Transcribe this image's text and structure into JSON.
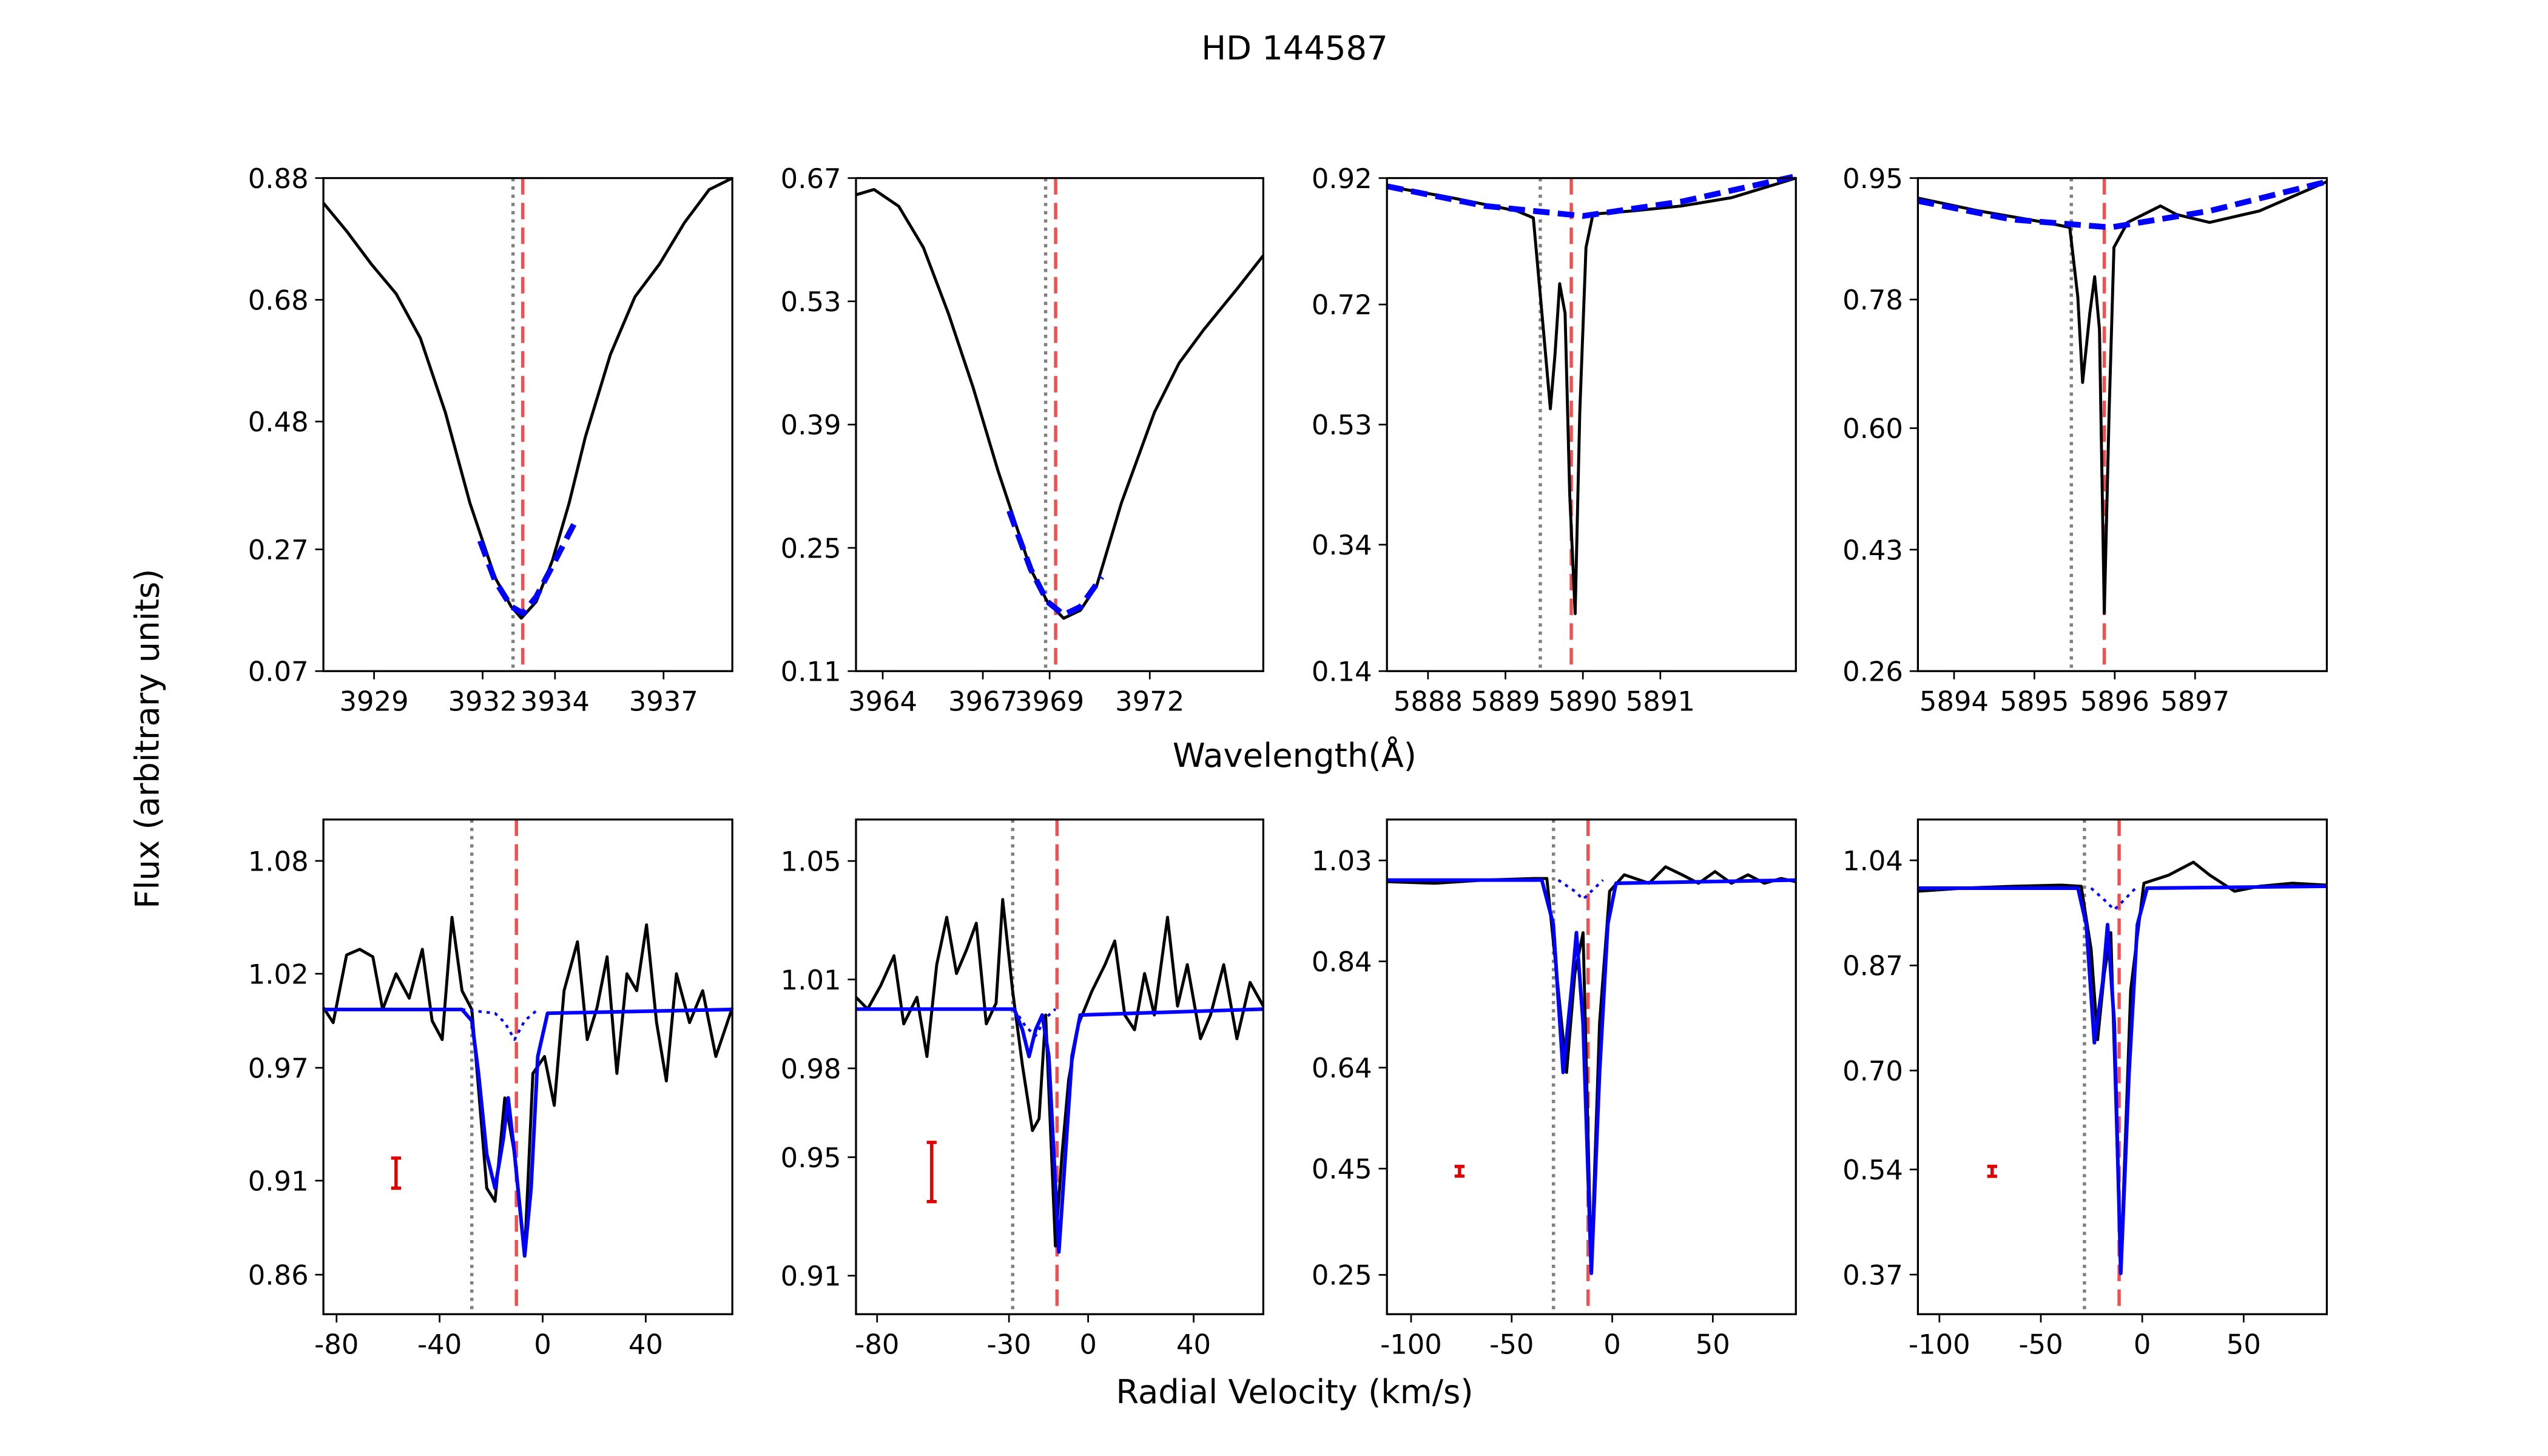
{
  "title": "HD 144587",
  "ylabel": "Flux (arbitrary units)",
  "xlabels": [
    "Wavelength(Å)",
    "Radial Velocity (km/s)"
  ],
  "chart_data": [
    {
      "type": "line",
      "xlim": [
        3927.6,
        3938.9
      ],
      "ylim": [
        0.07,
        0.88
      ],
      "xticks": [
        3929,
        3932,
        3934,
        3937
      ],
      "yticks": [
        0.07,
        0.27,
        0.48,
        0.68,
        0.88
      ],
      "series": [
        {
          "color": "#000000",
          "style": "solid",
          "x": [
            3927.6,
            3928.24,
            3928.92,
            3929.61,
            3930.28,
            3930.97,
            3931.65,
            3932.34,
            3932.79,
            3933.07,
            3933.48,
            3933.93,
            3934.39,
            3934.84,
            3935.53,
            3936.21,
            3936.89,
            3937.58,
            3938.26,
            3938.9
          ],
          "values": [
            0.839,
            0.793,
            0.739,
            0.69,
            0.617,
            0.495,
            0.346,
            0.224,
            0.176,
            0.157,
            0.184,
            0.252,
            0.346,
            0.455,
            0.59,
            0.685,
            0.739,
            0.807,
            0.861,
            0.88
          ]
        },
        {
          "color": "#0000ff",
          "style": "dashed",
          "x": [
            3931.93,
            3932.34,
            3932.79,
            3933.11,
            3933.48,
            3933.93,
            3934.52
          ],
          "values": [
            0.284,
            0.219,
            0.176,
            0.165,
            0.192,
            0.243,
            0.311
          ]
        }
      ],
      "vlines": [
        {
          "x": 3932.84,
          "color": "#808080",
          "style": "dotted"
        },
        {
          "x": 3933.11,
          "color": "#f05050",
          "style": "dashed"
        }
      ]
    },
    {
      "type": "line",
      "xlim": [
        3963.2,
        3975.4
      ],
      "ylim": [
        0.11,
        0.67
      ],
      "xticks": [
        3964,
        3967,
        3969,
        3972
      ],
      "yticks": [
        0.11,
        0.25,
        0.39,
        0.53,
        0.67
      ],
      "series": [
        {
          "color": "#000000",
          "style": "solid",
          "x": [
            3963.2,
            3963.74,
            3964.48,
            3965.22,
            3965.97,
            3966.71,
            3967.45,
            3967.94,
            3968.43,
            3968.93,
            3969.42,
            3969.92,
            3970.41,
            3971.15,
            3972.14,
            3972.88,
            3973.62,
            3974.61,
            3975.4
          ],
          "values": [
            0.651,
            0.657,
            0.638,
            0.591,
            0.516,
            0.432,
            0.338,
            0.282,
            0.226,
            0.189,
            0.17,
            0.179,
            0.207,
            0.301,
            0.404,
            0.46,
            0.498,
            0.544,
            0.582
          ]
        },
        {
          "color": "#0000ff",
          "style": "dashed",
          "x": [
            3967.79,
            3968.43,
            3968.93,
            3969.42,
            3969.92,
            3970.56
          ],
          "values": [
            0.292,
            0.226,
            0.189,
            0.174,
            0.183,
            0.217
          ]
        }
      ],
      "vlines": [
        {
          "x": 3968.88,
          "color": "#808080",
          "style": "dotted"
        },
        {
          "x": 3969.18,
          "color": "#f05050",
          "style": "dashed"
        }
      ]
    },
    {
      "type": "line",
      "xlim": [
        5887.47,
        5892.75
      ],
      "ylim": [
        0.14,
        0.92
      ],
      "xticks": [
        5888,
        5889,
        5890,
        5891
      ],
      "yticks": [
        0.14,
        0.34,
        0.53,
        0.72,
        0.92
      ],
      "series": [
        {
          "color": "#000000",
          "style": "solid",
          "x": [
            5887.47,
            5888.3,
            5889.15,
            5889.36,
            5889.49,
            5889.58,
            5889.64,
            5889.7,
            5889.77,
            5889.83,
            5889.9,
            5889.96,
            5890.04,
            5890.13,
            5890.64,
            5891.28,
            5891.92,
            5892.75
          ],
          "values": [
            0.907,
            0.889,
            0.868,
            0.857,
            0.68,
            0.555,
            0.641,
            0.753,
            0.706,
            0.419,
            0.231,
            0.55,
            0.81,
            0.863,
            0.868,
            0.876,
            0.889,
            0.92
          ]
        },
        {
          "color": "#0000ff",
          "style": "dashed",
          "x": [
            5887.47,
            5888.73,
            5890.0,
            5891.28,
            5892.75
          ],
          "values": [
            0.907,
            0.876,
            0.86,
            0.883,
            0.923
          ]
        }
      ],
      "vlines": [
        {
          "x": 5889.45,
          "color": "#808080",
          "style": "dotted"
        },
        {
          "x": 5889.85,
          "color": "#f05050",
          "style": "dashed"
        }
      ]
    },
    {
      "type": "line",
      "xlim": [
        5893.55,
        5898.64
      ],
      "ylim": [
        0.26,
        0.95
      ],
      "xticks": [
        5894,
        5895,
        5896,
        5897
      ],
      "yticks": [
        0.26,
        0.43,
        {
          "value": 0.6,
          "label": "0.60"
        },
        0.78,
        0.95
      ],
      "series": [
        {
          "color": "#000000",
          "style": "solid",
          "x": [
            5893.55,
            5894.31,
            5895.13,
            5895.44,
            5895.54,
            5895.6,
            5895.69,
            5895.75,
            5895.81,
            5895.87,
            5895.93,
            5895.99,
            5896.16,
            5896.57,
            5896.77,
            5897.18,
            5897.8,
            5898.64
          ],
          "values": [
            0.922,
            0.904,
            0.888,
            0.881,
            0.784,
            0.664,
            0.761,
            0.812,
            0.738,
            0.341,
            0.622,
            0.853,
            0.888,
            0.911,
            0.899,
            0.888,
            0.904,
            0.945
          ]
        },
        {
          "color": "#0000ff",
          "style": "dashed",
          "x": [
            5893.55,
            5894.72,
            5895.95,
            5897.18,
            5898.64
          ],
          "values": [
            0.918,
            0.892,
            0.881,
            0.904,
            0.945
          ]
        }
      ],
      "vlines": [
        {
          "x": 5895.46,
          "color": "#808080",
          "style": "dotted"
        },
        {
          "x": 5895.87,
          "color": "#f05050",
          "style": "dashed"
        }
      ]
    },
    {
      "type": "line",
      "xlim": [
        -85.1,
        73.6
      ],
      "ylim": [
        0.839,
        1.102
      ],
      "xticks": [
        -80,
        -40,
        0,
        40
      ],
      "yticks": [
        0.86,
        0.91,
        0.97,
        1.02,
        1.08
      ],
      "series": [
        {
          "color": "#000000",
          "style": "solid",
          "x": [
            -85.1,
            -81.3,
            -76.1,
            -71.0,
            -65.9,
            -62.1,
            -56.9,
            -51.8,
            -46.7,
            -42.9,
            -39.0,
            -35.2,
            -31.3,
            -27.5,
            -24.9,
            -21.7,
            -18.5,
            -14.7,
            -10.9,
            -7.0,
            -3.8,
            0.7,
            4.5,
            8.3,
            13.5,
            17.3,
            21.1,
            25.0,
            28.8,
            32.7,
            36.5,
            40.3,
            44.2,
            48.0,
            51.9,
            57.0,
            62.1,
            67.2,
            73.6
          ],
          "values": [
            1.002,
            0.994,
            1.03,
            1.033,
            1.029,
            1.001,
            1.02,
            1.007,
            1.033,
            0.995,
            0.985,
            1.05,
            1.011,
            1.001,
            0.959,
            0.906,
            0.899,
            0.954,
            0.924,
            0.871,
            0.967,
            0.976,
            0.95,
            1.011,
            1.037,
            0.985,
            1.002,
            1.029,
            0.967,
            1.02,
            1.011,
            1.046,
            0.994,
            0.963,
            1.02,
            0.994,
            1.011,
            0.976,
            1.002
          ]
        },
        {
          "color": "#0000ff",
          "style": "solid",
          "x": [
            -85.1,
            -31.3,
            -27.5,
            -24.9,
            -21.7,
            -18.5,
            -15.3,
            -13.4,
            -10.9,
            -7.0,
            -4.5,
            -1.9,
            1.9,
            73.6
          ],
          "values": [
            1.001,
            1.001,
            0.995,
            0.967,
            0.924,
            0.906,
            0.932,
            0.954,
            0.924,
            0.87,
            0.906,
            0.976,
            0.999,
            1.001
          ]
        },
        {
          "color": "#0000ff",
          "style": "dotted",
          "x": [
            -31.3,
            -18.5,
            -14.7,
            -10.9,
            -7.0,
            -1.9
          ],
          "values": [
            1.001,
            0.999,
            0.994,
            0.985,
            0.995,
            1.001
          ]
        }
      ],
      "vlines": [
        {
          "x": -27.5,
          "color": "#808080",
          "style": "dotted"
        },
        {
          "x": -10.2,
          "color": "#f05050",
          "style": "dashed"
        }
      ],
      "errorbar": {
        "x": -56.9,
        "value": 0.914,
        "error": 0.008,
        "color": "#e00000"
      }
    },
    {
      "type": "line",
      "xlim": [
        -88,
        66.4
      ],
      "ylim": [
        0.897,
        1.064
      ],
      "xticks": [
        -80,
        -30,
        0,
        40
      ],
      "yticks": [
        0.91,
        0.95,
        0.98,
        1.01,
        1.05
      ],
      "series": [
        {
          "color": "#000000",
          "style": "solid",
          "x": [
            -88,
            -83.6,
            -78.6,
            -73.6,
            -69.9,
            -64.9,
            -61.1,
            -57.4,
            -53.6,
            -49.9,
            -46.1,
            -42.4,
            -38.6,
            -34.9,
            -32.4,
            -28.6,
            -24.9,
            -21.1,
            -18.6,
            -16.1,
            -12.4,
            -9.9,
            -7.4,
            -3.6,
            1.4,
            6.4,
            10.1,
            13.9,
            17.6,
            21.4,
            25.1,
            30.1,
            33.9,
            37.6,
            42.6,
            46.4,
            51.4,
            56.4,
            61.4,
            66.4
          ],
          "values": [
            1.004,
            1.0,
            1.008,
            1.018,
            0.995,
            1.004,
            0.984,
            1.015,
            1.031,
            1.012,
            1.02,
            1.029,
            0.995,
            1.002,
            1.037,
            1.006,
            0.981,
            0.959,
            0.963,
            0.998,
            0.92,
            0.951,
            0.976,
            0.995,
            1.006,
            1.015,
            1.023,
            0.998,
            0.993,
            1.012,
            0.998,
            1.031,
            1.001,
            1.015,
            0.99,
            0.998,
            1.015,
            0.99,
            1.009,
            1.001
          ]
        },
        {
          "color": "#0000ff",
          "style": "solid",
          "x": [
            -88,
            -28.0,
            -24.9,
            -22.4,
            -19.9,
            -17.4,
            -14.9,
            -11.1,
            -8.6,
            -6.1,
            -3.0,
            66.4
          ],
          "values": [
            1.0,
            1.0,
            0.993,
            0.984,
            0.993,
            0.998,
            0.984,
            0.918,
            0.951,
            0.984,
            0.998,
            1.0
          ]
        },
        {
          "color": "#0000ff",
          "style": "dotted",
          "x": [
            -28.0,
            -23.6,
            -19.9,
            -16.1,
            -12.4
          ],
          "values": [
            1.0,
            0.994,
            0.991,
            0.997,
            1.0
          ]
        }
      ],
      "vlines": [
        {
          "x": -28.6,
          "color": "#808080",
          "style": "dotted"
        },
        {
          "x": -11.8,
          "color": "#f05050",
          "style": "dashed"
        }
      ],
      "errorbar": {
        "x": -59.3,
        "value": 0.945,
        "error": 0.01,
        "color": "#e00000"
      }
    },
    {
      "type": "line",
      "xlim": [
        -112,
        91.3
      ],
      "ylim": [
        0.176,
        1.107
      ],
      "xticks": [
        -100,
        -50,
        0,
        50
      ],
      "yticks": [
        0.25,
        0.45,
        0.64,
        0.84,
        1.03
      ],
      "series": [
        {
          "color": "#000000",
          "style": "solid",
          "x": [
            -112,
            -88.2,
            -63.6,
            -39.0,
            -32.5,
            -26.8,
            -22.7,
            -18.6,
            -14.5,
            -10.4,
            -6.3,
            -1.3,
            6.0,
            18.3,
            26.5,
            34.7,
            42.9,
            51.1,
            59.3,
            67.5,
            75.7,
            83.9,
            91.3
          ],
          "values": [
            0.99,
            0.987,
            0.993,
            0.996,
            0.996,
            0.786,
            0.631,
            0.817,
            0.894,
            0.26,
            0.724,
            0.972,
            1.003,
            0.987,
            1.018,
            1.003,
            0.987,
            1.009,
            0.987,
            1.003,
            0.987,
            0.996,
            0.99
          ]
        },
        {
          "color": "#0000ff",
          "style": "solid",
          "x": [
            -112,
            -35.0,
            -29.3,
            -24.4,
            -20.3,
            -17.8,
            -14.5,
            -10.4,
            -6.3,
            -2.2,
            1.9,
            91.3
          ],
          "values": [
            0.993,
            0.993,
            0.91,
            0.631,
            0.786,
            0.894,
            0.724,
            0.253,
            0.631,
            0.91,
            0.987,
            0.993
          ]
        },
        {
          "color": "#0000ff",
          "style": "dotted",
          "x": [
            -26.8,
            -18.6,
            -14.5,
            -10.4,
            -4.6
          ],
          "values": [
            0.993,
            0.972,
            0.957,
            0.972,
            0.993
          ]
        }
      ],
      "vlines": [
        {
          "x": -29.2,
          "color": "#808080",
          "style": "dotted"
        },
        {
          "x": -12.0,
          "color": "#f05050",
          "style": "dashed"
        }
      ],
      "errorbar": {
        "x": -75.9,
        "value": 0.445,
        "error": 0.009,
        "color": "#e00000"
      }
    },
    {
      "type": "line",
      "xlim": [
        -110.6,
        91.0
      ],
      "ylim": [
        0.306,
        1.106
      ],
      "xticks": [
        -100,
        -50,
        0,
        50
      ],
      "yticks": [
        0.37,
        0.54,
        {
          "value": 0.7,
          "label": "0.70"
        },
        0.87,
        1.04
      ],
      "series": [
        {
          "color": "#000000",
          "style": "solid",
          "x": [
            -110.6,
            -88.6,
            -64.3,
            -39.9,
            -30.1,
            -25.2,
            -22.0,
            -18.7,
            -15.5,
            -10.6,
            -5.7,
            0.8,
            13.0,
            25.2,
            33.3,
            45.5,
            57.7,
            74.0,
            91.0
          ],
          "values": [
            0.99,
            0.995,
            0.998,
            1.0,
            0.998,
            0.896,
            0.75,
            0.857,
            0.923,
            0.378,
            0.83,
            1.003,
            1.016,
            1.037,
            1.016,
            0.99,
            0.998,
            1.003,
            1.0
          ]
        },
        {
          "color": "#0000ff",
          "style": "solid",
          "x": [
            -110.6,
            -31.7,
            -27.6,
            -23.6,
            -19.5,
            -17.1,
            -13.8,
            -10.6,
            -6.5,
            -2.4,
            2.4,
            91.0
          ],
          "values": [
            0.995,
            0.995,
            0.936,
            0.745,
            0.843,
            0.936,
            0.777,
            0.372,
            0.697,
            0.936,
            0.995,
            0.998
          ]
        },
        {
          "color": "#0000ff",
          "style": "dotted",
          "x": [
            -25.2,
            -18.7,
            -13.8,
            -8.9,
            -3.3
          ],
          "values": [
            0.995,
            0.976,
            0.96,
            0.976,
            0.995
          ]
        }
      ],
      "vlines": [
        {
          "x": -28.5,
          "color": "#808080",
          "style": "dotted"
        },
        {
          "x": -11.4,
          "color": "#f05050",
          "style": "dashed"
        }
      ],
      "errorbar": {
        "x": -74.0,
        "value": 0.537,
        "error": 0.008,
        "color": "#e00000"
      }
    }
  ]
}
